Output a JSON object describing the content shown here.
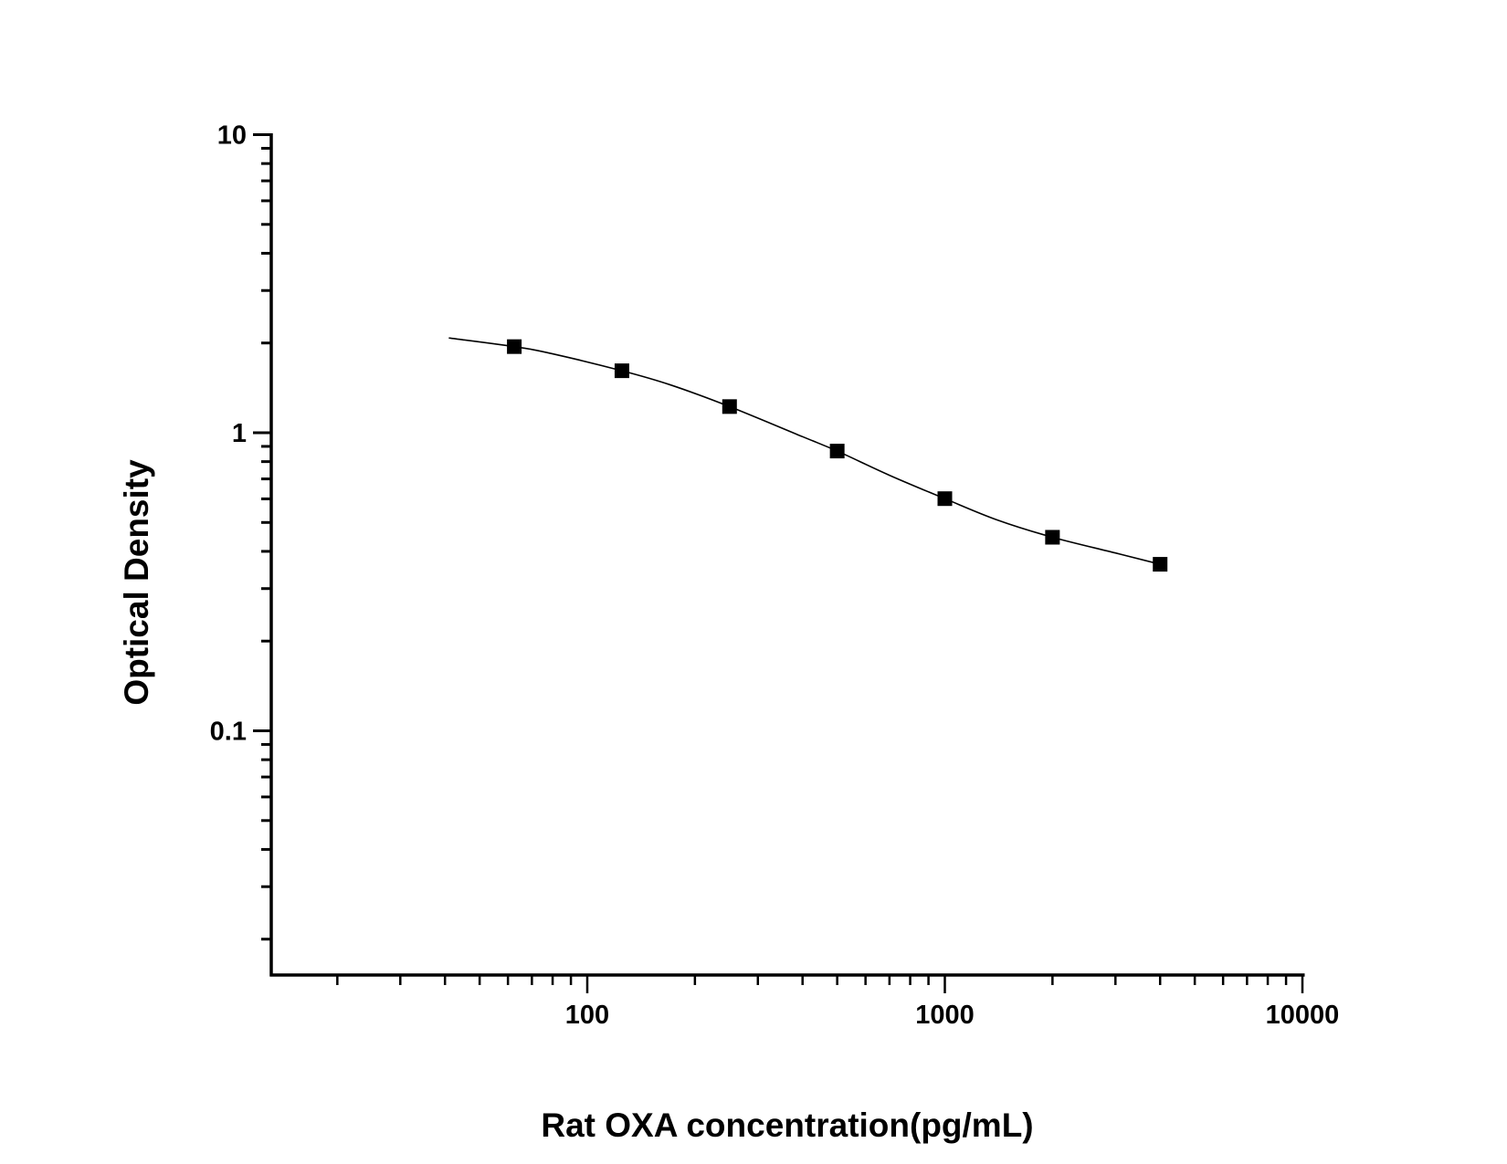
{
  "chart_data": {
    "type": "scatter",
    "title": "",
    "xlabel": "Rat OXA concentration(pg/mL)",
    "ylabel": "Optical Density",
    "x_scale": "log",
    "y_scale": "log",
    "xlim": [
      13,
      10000
    ],
    "ylim": [
      0.015,
      10
    ],
    "x_ticks": [
      {
        "value": 100,
        "label": "100"
      },
      {
        "value": 1000,
        "label": "1000"
      },
      {
        "value": 10000,
        "label": "10000"
      }
    ],
    "y_ticks": [
      {
        "value": 10,
        "label": "10"
      },
      {
        "value": 1,
        "label": "1"
      },
      {
        "value": 0.1,
        "label": "0.1"
      }
    ],
    "grid": false,
    "legend": "none",
    "marker": "square",
    "color": "#000000",
    "series": [
      {
        "x": [
          62.5,
          125,
          250,
          500,
          1000,
          2000,
          4000
        ],
        "y": [
          1.945,
          1.614,
          1.224,
          0.868,
          0.601,
          0.446,
          0.362
        ]
      }
    ],
    "fit_curve": {
      "x": [
        41,
        62.5,
        80,
        125,
        170,
        250,
        400,
        500,
        700,
        1000,
        1400,
        2000,
        3000,
        4000
      ],
      "y": [
        2.08,
        1.945,
        1.84,
        1.614,
        1.45,
        1.224,
        0.97,
        0.868,
        0.72,
        0.601,
        0.51,
        0.446,
        0.395,
        0.362
      ]
    }
  }
}
